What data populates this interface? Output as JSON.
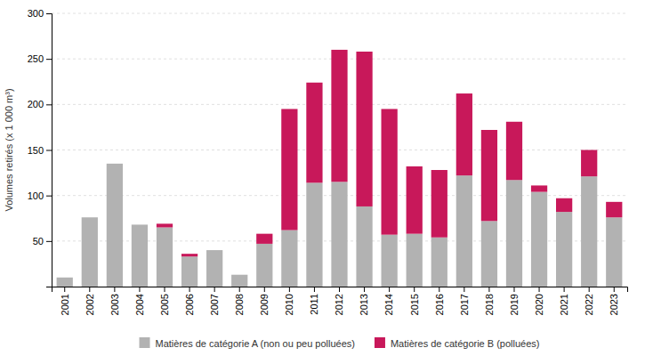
{
  "chart_data": {
    "type": "bar",
    "stacked": true,
    "categories": [
      "2001",
      "2002",
      "2003",
      "2004",
      "2005",
      "2006",
      "2007",
      "2008",
      "2009",
      "2010",
      "2011",
      "2012",
      "2013",
      "2014",
      "2015",
      "2016",
      "2017",
      "2018",
      "2019",
      "2020",
      "2021",
      "2022",
      "2023"
    ],
    "series": [
      {
        "name": "Matières de catégorie A (non ou peu polluées)",
        "color": "#b2b2b2",
        "values": [
          10,
          76,
          135,
          68,
          65,
          33,
          40,
          13,
          47,
          62,
          114,
          115,
          88,
          57,
          58,
          54,
          122,
          72,
          117,
          104,
          82,
          121,
          76
        ]
      },
      {
        "name": "Matières de catégorie B (polluées)",
        "color": "#c8185a",
        "values": [
          0,
          0,
          0,
          0,
          4,
          3,
          0,
          0,
          11,
          133,
          110,
          145,
          170,
          138,
          74,
          74,
          90,
          100,
          64,
          7,
          15,
          29,
          17
        ]
      }
    ],
    "ylabel": "Volumes retirés (x 1 000 m³)",
    "ylim": [
      0,
      300
    ],
    "yticks": [
      50,
      100,
      150,
      200,
      250,
      300
    ],
    "grid": true,
    "legend": "bottom"
  }
}
